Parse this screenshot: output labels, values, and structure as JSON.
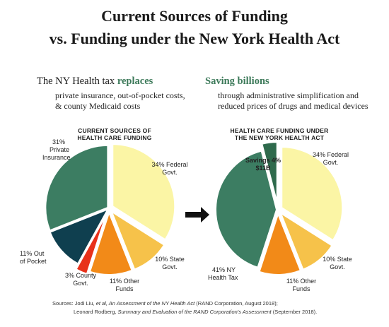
{
  "title_line1": "Current Sources of Funding",
  "title_line2": "vs. Funding under the New York Health Act",
  "left_lead_prefix": "The NY Health tax ",
  "left_lead_bold": "replaces",
  "left_sub_line1": "private insurance, out-of-pocket costs,",
  "left_sub_line2": "& county Medicaid costs",
  "right_lead": "Saving billions",
  "right_sub_line1": "through administrative simplification and",
  "right_sub_line2": "reduced prices of drugs and medical devices",
  "sources_line1_a": "Sources: Jodi Liu, ",
  "sources_line1_b": "et al, An Assessment of the NY Health Act",
  "sources_line1_c": " (RAND Corporation, August 2018);",
  "sources_line2_a": "Leonard Rodberg, ",
  "sources_line2_b": "Summary and Evaluation of the RAND Corporation's Assessment",
  "sources_line2_c": " (September 2018).",
  "colors": {
    "federal": "#fbf5a5",
    "state": "#f6c24a",
    "other": "#f28a18",
    "county": "#e8311a",
    "oop": "#0f3f4f",
    "private": "#3c7d62",
    "nyhealth": "#3c7d62",
    "savings": "#2e6a4c"
  },
  "chart_data": [
    {
      "type": "pie",
      "title_line1": "CURRENT SOURCES OF",
      "title_line2": "HEALTH CARE FUNDING",
      "slices": [
        {
          "key": "federal",
          "value": 34,
          "label1": "34% Federal",
          "label2": "Govt."
        },
        {
          "key": "state",
          "value": 10,
          "label1": "10% State",
          "label2": "Govt."
        },
        {
          "key": "other",
          "value": 11,
          "label1": "11% Other",
          "label2": "Funds"
        },
        {
          "key": "county",
          "value": 3,
          "label1": "3% County",
          "label2": "Govt."
        },
        {
          "key": "oop",
          "value": 11,
          "label1": "11% Out",
          "label2": "of Pocket"
        },
        {
          "key": "private",
          "value": 31,
          "label1": "31%",
          "label2": "Private",
          "label3": "Insurance"
        }
      ]
    },
    {
      "type": "pie",
      "title_line1": "HEALTH CARE FUNDING UNDER",
      "title_line2": "THE NEW YORK HEALTH ACT",
      "slices": [
        {
          "key": "federal",
          "value": 34,
          "label1": "34% Federal",
          "label2": "Govt."
        },
        {
          "key": "state",
          "value": 10,
          "label1": "10% State",
          "label2": "Govt."
        },
        {
          "key": "other",
          "value": 11,
          "label1": "11% Other",
          "label2": "Funds"
        },
        {
          "key": "nyhealth",
          "value": 41,
          "label1": "41% NY",
          "label2": "Health Tax"
        },
        {
          "key": "savings",
          "value": 4,
          "label1": "Savings 4%",
          "label2": "$11B"
        }
      ]
    }
  ]
}
